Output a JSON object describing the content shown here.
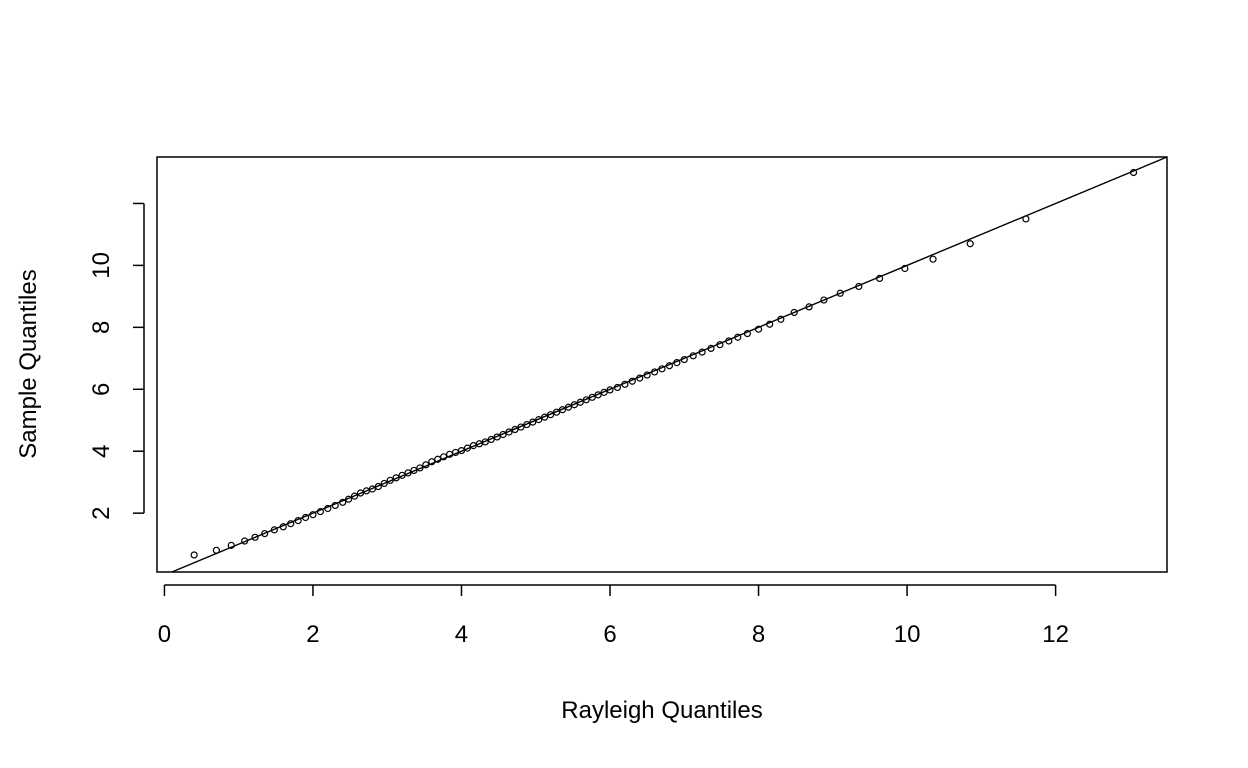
{
  "chart_data": {
    "type": "scatter",
    "title": "",
    "xlabel": "Rayleigh Quantiles",
    "ylabel": "Sample Quantiles",
    "xlim": [
      -0.1,
      13.5
    ],
    "ylim": [
      0.1,
      13.5
    ],
    "x_ticks": [
      0,
      2,
      4,
      6,
      8,
      10,
      12
    ],
    "y_ticks": [
      2,
      4,
      6,
      8,
      10,
      12
    ],
    "x_tick_labels": [
      "0",
      "2",
      "4",
      "6",
      "8",
      "10",
      "12"
    ],
    "y_tick_labels": [
      "2",
      "4",
      "6",
      "8",
      "10",
      ""
    ],
    "grid": false,
    "reference_line": {
      "x": [
        0.1,
        13.5
      ],
      "y": [
        0.1,
        13.5
      ]
    },
    "series": [
      {
        "x": [
          0.4,
          0.7,
          0.9,
          1.08,
          1.22,
          1.35,
          1.48,
          1.6,
          1.7,
          1.8,
          1.9,
          2.0,
          2.1,
          2.2,
          2.3,
          2.4,
          2.48,
          2.56,
          2.64,
          2.72,
          2.8,
          2.88,
          2.96,
          3.04,
          3.12,
          3.2,
          3.28,
          3.36,
          3.44,
          3.52,
          3.6,
          3.68,
          3.76,
          3.84,
          3.92,
          4.0,
          4.08,
          4.16,
          4.24,
          4.32,
          4.4,
          4.48,
          4.56,
          4.64,
          4.72,
          4.8,
          4.88,
          4.96,
          5.04,
          5.12,
          5.2,
          5.28,
          5.36,
          5.44,
          5.52,
          5.6,
          5.68,
          5.76,
          5.84,
          5.92,
          6.0,
          6.1,
          6.2,
          6.3,
          6.4,
          6.5,
          6.6,
          6.7,
          6.8,
          6.9,
          7.0,
          7.12,
          7.24,
          7.36,
          7.48,
          7.6,
          7.72,
          7.85,
          8.0,
          8.15,
          8.3,
          8.48,
          8.68,
          8.88,
          9.1,
          9.35,
          9.63,
          9.97,
          10.35,
          10.85,
          11.6,
          13.05
        ],
        "y": [
          0.65,
          0.8,
          0.96,
          1.1,
          1.22,
          1.34,
          1.46,
          1.56,
          1.66,
          1.76,
          1.86,
          1.95,
          2.05,
          2.15,
          2.25,
          2.35,
          2.45,
          2.55,
          2.65,
          2.72,
          2.78,
          2.86,
          2.96,
          3.06,
          3.14,
          3.22,
          3.3,
          3.38,
          3.46,
          3.56,
          3.66,
          3.74,
          3.82,
          3.9,
          3.96,
          4.02,
          4.1,
          4.18,
          4.24,
          4.3,
          4.38,
          4.46,
          4.54,
          4.62,
          4.7,
          4.78,
          4.86,
          4.94,
          5.02,
          5.1,
          5.18,
          5.26,
          5.34,
          5.42,
          5.5,
          5.58,
          5.66,
          5.74,
          5.82,
          5.9,
          5.98,
          6.06,
          6.16,
          6.26,
          6.36,
          6.46,
          6.56,
          6.66,
          6.76,
          6.86,
          6.96,
          7.08,
          7.2,
          7.32,
          7.44,
          7.56,
          7.68,
          7.8,
          7.94,
          8.1,
          8.26,
          8.48,
          8.66,
          8.88,
          9.1,
          9.32,
          9.58,
          9.9,
          10.2,
          10.7,
          11.5,
          13.0
        ]
      }
    ]
  }
}
